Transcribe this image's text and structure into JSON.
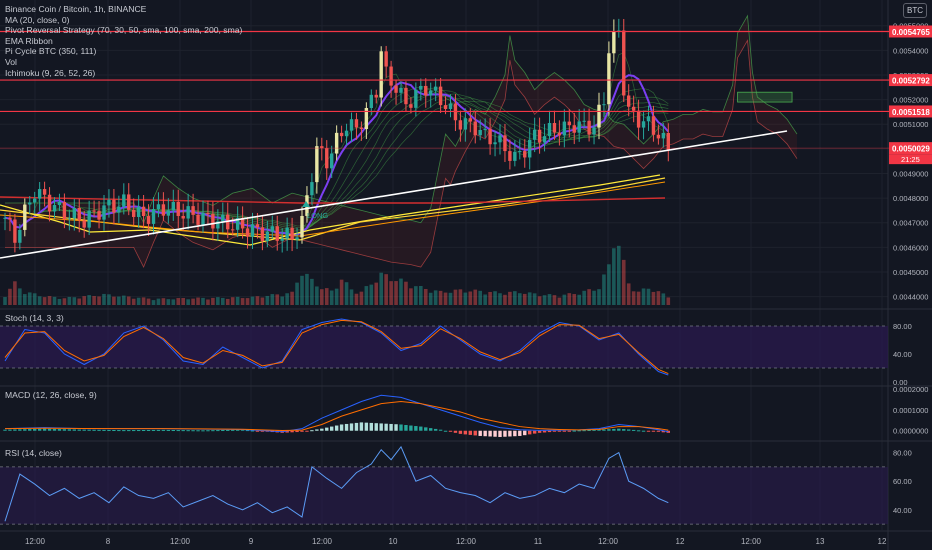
{
  "header": {
    "symbol": "Binance Coin / Bitcoin, 1h, BINANCE",
    "indicators": [
      "MA (20, close, 0)",
      "Pivot Reversal Strategy (70, 30, 50, sma, 100, sma, 200, sma)",
      "EMA Ribbon",
      "Pi Cycle BTC (350, 111)",
      "Vol",
      "Ichimoku (9, 26, 52, 26)"
    ],
    "currency": "BTC"
  },
  "price_labels": [
    {
      "value": "0.0054765",
      "color": "#f23645"
    },
    {
      "value": "0.0052792",
      "color": "#f23645"
    },
    {
      "value": "0.0051518",
      "color": "#f23645"
    },
    {
      "value": "0.0050029",
      "color": "#f23645"
    }
  ],
  "countdown": "21:25",
  "long_label": "LONG",
  "panes": {
    "stoch": {
      "label": "Stoch (14, 3, 3)",
      "ticks": [
        "80.00",
        "40.00",
        "0.00"
      ]
    },
    "macd": {
      "label": "MACD (12, 26, close, 9)",
      "ticks": [
        "0.0002000",
        "0.0001000",
        "0.0000000"
      ]
    },
    "rsi": {
      "label": "RSI (14, close)",
      "ticks": [
        "80.00",
        "60.00",
        "40.00"
      ]
    }
  },
  "time_axis": [
    "12:00",
    "8",
    "12:00",
    "9",
    "12:00",
    "10",
    "12:00",
    "11",
    "12:00",
    "12",
    "12:00",
    "13",
    "12"
  ],
  "colors": {
    "background": "#131722",
    "up": "#26a69a",
    "down": "#ef5350",
    "level": "#f23645",
    "ribbon": "#4caf50",
    "ma": "#7b3ff2",
    "stoch_fill": "#2a1a4d"
  },
  "chart_data": [
    {
      "type": "candlestick",
      "title": "Binance Coin / Bitcoin, 1h, BINANCE",
      "ylim": [
        0.00437,
        0.00558
      ],
      "y_ticks": [
        0.0055,
        0.0054,
        0.0053,
        0.0052,
        0.0051,
        0.005,
        0.0049,
        0.0048,
        0.0047,
        0.0046,
        0.0045,
        0.0044
      ],
      "horizontal_levels": [
        0.0054765,
        0.0052792,
        0.0051518,
        0.0050029
      ],
      "close_path": [
        [
          0,
          0.00472
        ],
        [
          2,
          0.00464
        ],
        [
          4,
          0.00474
        ],
        [
          6,
          0.00483
        ],
        [
          9,
          0.00478
        ],
        [
          12,
          0.00474
        ],
        [
          16,
          0.00471
        ],
        [
          20,
          0.00476
        ],
        [
          24,
          0.00478
        ],
        [
          28,
          0.00472
        ],
        [
          32,
          0.00476
        ],
        [
          36,
          0.00474
        ],
        [
          40,
          0.00472
        ],
        [
          44,
          0.0047
        ],
        [
          48,
          0.00468
        ],
        [
          52,
          0.00466
        ],
        [
          56,
          0.00465
        ],
        [
          58,
          0.00464
        ],
        [
          60,
          0.0047
        ],
        [
          61,
          0.0048
        ],
        [
          62,
          0.0049
        ],
        [
          63,
          0.005
        ],
        [
          65,
          0.00495
        ],
        [
          67,
          0.00503
        ],
        [
          69,
          0.0051
        ],
        [
          71,
          0.00508
        ],
        [
          73,
          0.00515
        ],
        [
          75,
          0.00524
        ],
        [
          76,
          0.0054
        ],
        [
          77,
          0.0053
        ],
        [
          79,
          0.00525
        ],
        [
          81,
          0.00518
        ],
        [
          83,
          0.00522
        ],
        [
          85,
          0.00525
        ],
        [
          87,
          0.00522
        ],
        [
          89,
          0.00518
        ],
        [
          91,
          0.00512
        ],
        [
          93,
          0.0051
        ],
        [
          95,
          0.00509
        ],
        [
          97,
          0.00505
        ],
        [
          99,
          0.00504
        ],
        [
          101,
          0.005
        ],
        [
          103,
          0.00496
        ],
        [
          105,
          0.005
        ],
        [
          107,
          0.00505
        ],
        [
          109,
          0.00506
        ],
        [
          111,
          0.00508
        ],
        [
          113,
          0.00508
        ],
        [
          115,
          0.0051
        ],
        [
          117,
          0.00509
        ],
        [
          119,
          0.00509
        ],
        [
          121,
          0.0052
        ],
        [
          122,
          0.00541
        ],
        [
          124,
          0.00548
        ],
        [
          125,
          0.00525
        ],
        [
          126,
          0.00515
        ],
        [
          128,
          0.00512
        ],
        [
          130,
          0.0051
        ],
        [
          132,
          0.00506
        ],
        [
          134,
          0.005
        ]
      ],
      "volume": [
        [
          0,
          12
        ],
        [
          2,
          25
        ],
        [
          4,
          15
        ],
        [
          8,
          10
        ],
        [
          12,
          8
        ],
        [
          20,
          12
        ],
        [
          30,
          7
        ],
        [
          40,
          8
        ],
        [
          50,
          9
        ],
        [
          58,
          14
        ],
        [
          60,
          40
        ],
        [
          62,
          28
        ],
        [
          64,
          20
        ],
        [
          66,
          16
        ],
        [
          68,
          30
        ],
        [
          70,
          18
        ],
        [
          72,
          15
        ],
        [
          74,
          25
        ],
        [
          76,
          35
        ],
        [
          80,
          28
        ],
        [
          84,
          20
        ],
        [
          88,
          15
        ],
        [
          92,
          17
        ],
        [
          96,
          16
        ],
        [
          100,
          14
        ],
        [
          104,
          15
        ],
        [
          108,
          12
        ],
        [
          112,
          11
        ],
        [
          116,
          14
        ],
        [
          120,
          20
        ],
        [
          122,
          45
        ],
        [
          123,
          80
        ],
        [
          124,
          70
        ],
        [
          126,
          25
        ],
        [
          128,
          15
        ],
        [
          130,
          20
        ],
        [
          134,
          10
        ]
      ]
    },
    {
      "type": "line",
      "title": "Stoch (14, 3, 3)",
      "ylim": [
        0,
        100
      ],
      "bands": [
        20,
        80
      ],
      "x": [
        0,
        4,
        8,
        12,
        16,
        20,
        24,
        28,
        32,
        36,
        40,
        44,
        48,
        52,
        56,
        60,
        64,
        68,
        72,
        76,
        80,
        84,
        88,
        92,
        96,
        100,
        104,
        108,
        112,
        116,
        120,
        124,
        128,
        132,
        134
      ],
      "series": [
        {
          "values": [
            30,
            75,
            70,
            40,
            25,
            40,
            70,
            80,
            60,
            30,
            25,
            50,
            35,
            20,
            30,
            75,
            85,
            90,
            85,
            70,
            45,
            55,
            80,
            60,
            40,
            30,
            45,
            70,
            85,
            80,
            60,
            70,
            40,
            15,
            10
          ]
        },
        {
          "values": [
            35,
            70,
            72,
            45,
            30,
            38,
            65,
            78,
            62,
            35,
            27,
            45,
            38,
            23,
            28,
            70,
            82,
            88,
            86,
            72,
            48,
            52,
            76,
            62,
            43,
            32,
            42,
            66,
            82,
            81,
            62,
            68,
            42,
            18,
            12
          ]
        }
      ]
    },
    {
      "type": "bar",
      "title": "MACD (12, 26, close, 9)",
      "ylim": [
        -3e-05,
        0.0002
      ],
      "x": [
        0,
        8,
        16,
        24,
        32,
        40,
        48,
        56,
        60,
        64,
        68,
        72,
        76,
        80,
        84,
        88,
        92,
        96,
        100,
        104,
        108,
        112,
        116,
        120,
        124,
        128,
        132,
        134
      ],
      "series": [
        {
          "values": [
            5e-06,
            1e-05,
            5e-06,
            3e-06,
            4e-06,
            2e-06,
            5e-06,
            -1e-05,
            -5e-06,
            1e-05,
            3e-05,
            4e-05,
            3.5e-05,
            3e-05,
            2e-05,
            5e-06,
            -1.5e-05,
            -2.5e-05,
            -3e-05,
            -2.5e-05,
            -1e-05,
            -3e-06,
            2e-06,
            5e-06,
            1e-05,
            2e-06,
            -5e-06,
            -1e-05
          ]
        },
        {
          "values": [
            1e-05,
            1.5e-05,
            1e-05,
            1e-05,
            1e-05,
            8e-06,
            6e-06,
            -5e-06,
            1e-05,
            6e-05,
            0.0001,
            0.00014,
            0.00017,
            0.00016,
            0.00013,
            0.0001,
            7e-05,
            4e-05,
            1.5e-05,
            5e-06,
            2e-06,
            3e-06,
            4e-06,
            1e-05,
            3e-05,
            2e-05,
            5e-06,
            -5e-06
          ]
        },
        {
          "values": [
            1e-05,
            1.2e-05,
            1.1e-05,
            1e-05,
            1e-05,
            9e-06,
            7e-06,
            1e-06,
            3e-06,
            3e-05,
            7e-05,
            0.0001,
            0.00013,
            0.00014,
            0.00013,
            0.00011,
            9e-05,
            6e-05,
            4e-05,
            2e-05,
            1e-05,
            6e-06,
            4e-06,
            6e-06,
            2e-05,
            2e-05,
            1e-05,
            3e-06
          ]
        }
      ]
    },
    {
      "type": "line",
      "title": "RSI (14, close)",
      "ylim": [
        28,
        86
      ],
      "bands": [
        30,
        70
      ],
      "x": [
        0,
        3,
        6,
        9,
        12,
        15,
        18,
        21,
        24,
        27,
        30,
        33,
        36,
        39,
        42,
        45,
        48,
        51,
        54,
        57,
        60,
        62,
        65,
        68,
        71,
        74,
        76,
        78,
        80,
        83,
        86,
        89,
        92,
        95,
        98,
        101,
        104,
        107,
        110,
        113,
        116,
        119,
        122,
        124,
        126,
        129,
        132,
        134
      ],
      "series": [
        {
          "values": [
            32,
            65,
            58,
            50,
            55,
            48,
            52,
            45,
            56,
            50,
            48,
            52,
            42,
            46,
            50,
            44,
            40,
            45,
            38,
            42,
            35,
            70,
            62,
            55,
            66,
            72,
            82,
            75,
            84,
            60,
            64,
            55,
            52,
            50,
            45,
            52,
            48,
            50,
            55,
            52,
            58,
            55,
            76,
            80,
            60,
            55,
            48,
            45
          ]
        }
      ]
    }
  ]
}
